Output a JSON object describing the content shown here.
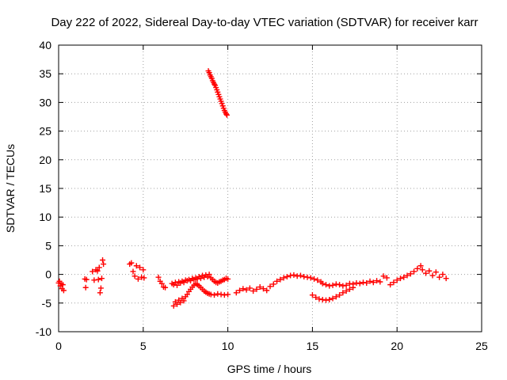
{
  "chart_data": {
    "type": "scatter",
    "title": "Day 222 of 2022, Sidereal Day-to-day VTEC variation (SDTVAR) for receiver karr",
    "xlabel": "GPS time / hours",
    "ylabel": "SDTVAR / TECUs",
    "xlim": [
      0,
      25
    ],
    "ylim": [
      -10,
      40
    ],
    "xticks": [
      0,
      5,
      10,
      15,
      20,
      25
    ],
    "yticks": [
      -10,
      -5,
      0,
      5,
      10,
      15,
      20,
      25,
      30,
      35,
      40
    ],
    "grid": true,
    "marker": "+",
    "color": "#ff0000",
    "series": [
      {
        "name": "sdtvar",
        "segments": [
          {
            "x": [
              0.0,
              0.05,
              0.1,
              0.15,
              0.2,
              0.25,
              0.3
            ],
            "y": [
              -1.5,
              -1.2,
              -2.0,
              -1.6,
              -2.5,
              -1.8,
              -2.8
            ]
          },
          {
            "x": [
              1.55,
              1.6,
              1.65
            ],
            "y": [
              -0.8,
              -2.3,
              -0.9
            ]
          },
          {
            "x": [
              2.0,
              2.1,
              2.2,
              2.3,
              2.35,
              2.4,
              2.45,
              2.5,
              2.55,
              2.6,
              2.65
            ],
            "y": [
              0.5,
              -1.0,
              0.8,
              0.6,
              -0.9,
              1.2,
              -3.2,
              -2.4,
              -0.7,
              2.5,
              1.8
            ]
          },
          {
            "x": [
              4.2,
              4.3,
              4.4,
              4.5,
              4.6,
              4.7,
              4.8,
              4.9,
              5.0,
              5.05
            ],
            "y": [
              1.8,
              2.0,
              0.5,
              -0.3,
              1.5,
              -0.8,
              1.2,
              -0.5,
              0.8,
              -0.6
            ]
          },
          {
            "x": [
              5.9,
              6.0,
              6.1,
              6.2,
              6.3
            ],
            "y": [
              -0.5,
              -1.2,
              -1.6,
              -2.2,
              -2.3
            ]
          },
          {
            "x": [
              6.7,
              6.8,
              6.9,
              7.0,
              7.1,
              7.2,
              7.3,
              7.4,
              7.5,
              7.6,
              7.7,
              7.8,
              7.9,
              8.0,
              8.1,
              8.2,
              8.3,
              8.4,
              8.5,
              8.6,
              8.7,
              8.8,
              8.9,
              9.0,
              9.1,
              9.2,
              9.3,
              9.4,
              9.5,
              9.6,
              9.7,
              9.8,
              9.9,
              10.0
            ],
            "y": [
              -1.6,
              -1.8,
              -1.4,
              -1.9,
              -1.3,
              -1.5,
              -1.2,
              -1.4,
              -1.0,
              -1.1,
              -0.9,
              -1.1,
              -0.7,
              -0.9,
              -0.6,
              -0.8,
              -0.4,
              -0.7,
              -0.2,
              -0.5,
              -0.1,
              -0.4,
              0.0,
              -0.6,
              -0.9,
              -1.2,
              -1.4,
              -1.5,
              -1.3,
              -1.2,
              -1.0,
              -0.9,
              -0.7,
              -0.8
            ]
          },
          {
            "x": [
              6.8,
              6.9,
              7.0,
              7.1,
              7.2,
              7.3,
              7.4,
              7.5,
              7.6,
              7.7,
              7.8,
              7.9,
              8.0,
              8.1,
              8.2,
              8.3,
              8.4,
              8.5,
              8.6,
              8.7,
              8.8,
              8.9,
              9.0,
              9.2,
              9.4,
              9.6,
              9.8,
              10.0
            ],
            "y": [
              -5.5,
              -4.8,
              -5.2,
              -4.5,
              -4.9,
              -4.2,
              -4.6,
              -3.9,
              -3.5,
              -3.0,
              -2.6,
              -2.2,
              -1.9,
              -1.6,
              -1.8,
              -2.0,
              -2.3,
              -2.6,
              -2.9,
              -3.1,
              -3.3,
              -3.4,
              -3.5,
              -3.6,
              -3.4,
              -3.5,
              -3.6,
              -3.5
            ]
          },
          {
            "x": [
              8.85,
              8.9,
              8.95,
              9.0,
              9.05,
              9.1,
              9.15,
              9.2,
              9.25,
              9.3,
              9.35,
              9.4,
              9.45,
              9.5,
              9.55,
              9.6,
              9.65,
              9.7,
              9.75,
              9.8,
              9.85,
              9.9,
              9.95
            ],
            "y": [
              35.5,
              35.2,
              34.8,
              34.5,
              34.2,
              33.8,
              33.5,
              33.2,
              33.0,
              32.6,
              32.2,
              31.8,
              31.4,
              31.0,
              30.6,
              30.2,
              29.8,
              29.4,
              29.0,
              28.6,
              28.3,
              28.0,
              27.8
            ]
          },
          {
            "x": [
              10.5,
              10.7,
              10.9,
              11.1,
              11.3,
              11.5,
              11.7,
              11.9,
              12.1,
              12.3,
              12.5,
              12.7,
              12.9,
              13.1,
              13.3,
              13.5,
              13.7,
              13.9,
              14.1,
              14.3,
              14.5,
              14.7,
              14.9,
              15.1,
              15.3,
              15.5
            ],
            "y": [
              -3.2,
              -2.8,
              -2.5,
              -2.7,
              -2.4,
              -2.9,
              -2.6,
              -2.2,
              -2.5,
              -2.8,
              -2.1,
              -1.7,
              -1.2,
              -0.9,
              -0.6,
              -0.4,
              -0.2,
              -0.1,
              -0.3,
              -0.2,
              -0.4,
              -0.5,
              -0.6,
              -0.8,
              -1.0,
              -1.3
            ]
          },
          {
            "x": [
              15.0,
              15.2,
              15.4,
              15.6,
              15.8,
              16.0,
              16.2,
              16.4,
              16.6,
              16.8,
              17.0,
              17.2,
              17.4
            ],
            "y": [
              -3.6,
              -4.0,
              -4.3,
              -4.4,
              -4.5,
              -4.4,
              -4.2,
              -3.9,
              -3.6,
              -3.2,
              -2.9,
              -2.6,
              -2.3
            ]
          },
          {
            "x": [
              15.6,
              15.8,
              16.0,
              16.2,
              16.4,
              16.6,
              16.8,
              17.0,
              17.2,
              17.4,
              17.6,
              17.8,
              18.0,
              18.2,
              18.4,
              18.6,
              18.8,
              19.0,
              19.2,
              19.4,
              19.6,
              19.8,
              20.0,
              20.2,
              20.4,
              20.6,
              20.8,
              21.0,
              21.2,
              21.4
            ],
            "y": [
              -1.6,
              -1.8,
              -2.0,
              -1.9,
              -1.7,
              -1.8,
              -2.0,
              -1.9,
              -1.6,
              -1.7,
              -1.5,
              -1.6,
              -1.4,
              -1.5,
              -1.2,
              -1.4,
              -1.1,
              -1.3,
              -0.3,
              -0.6,
              -1.8,
              -1.4,
              -1.0,
              -0.7,
              -0.5,
              -0.2,
              0.1,
              0.5,
              1.0,
              1.5
            ]
          },
          {
            "x": [
              21.5,
              21.7,
              21.9,
              22.1,
              22.3,
              22.5,
              22.7,
              22.9
            ],
            "y": [
              0.8,
              0.2,
              0.6,
              -0.2,
              0.4,
              -0.5,
              0.0,
              -0.7
            ]
          }
        ]
      }
    ]
  }
}
